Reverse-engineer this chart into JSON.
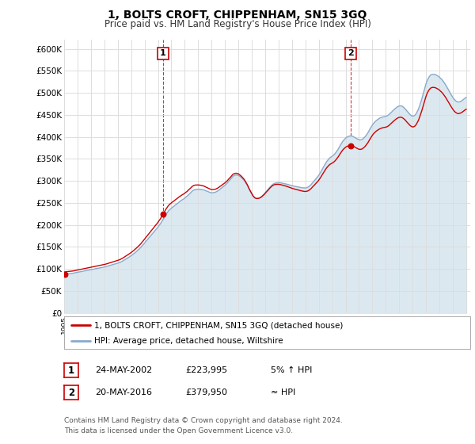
{
  "title": "1, BOLTS CROFT, CHIPPENHAM, SN15 3GQ",
  "subtitle": "Price paid vs. HM Land Registry's House Price Index (HPI)",
  "ylabel_ticks": [
    "£0",
    "£50K",
    "£100K",
    "£150K",
    "£200K",
    "£250K",
    "£300K",
    "£350K",
    "£400K",
    "£450K",
    "£500K",
    "£550K",
    "£600K"
  ],
  "ylim": [
    0,
    620000
  ],
  "yticks": [
    0,
    50000,
    100000,
    150000,
    200000,
    250000,
    300000,
    350000,
    400000,
    450000,
    500000,
    550000,
    600000
  ],
  "background_color": "#ffffff",
  "plot_bg_color": "#ffffff",
  "grid_color": "#dddddd",
  "red_color": "#cc0000",
  "blue_color": "#88aacc",
  "blue_fill": "#dce8f0",
  "legend_entry1": "1, BOLTS CROFT, CHIPPENHAM, SN15 3GQ (detached house)",
  "legend_entry2": "HPI: Average price, detached house, Wiltshire",
  "table_row1": [
    "1",
    "24-MAY-2002",
    "£223,995",
    "5% ↑ HPI"
  ],
  "table_row2": [
    "2",
    "20-MAY-2016",
    "£379,950",
    "≈ HPI"
  ],
  "footer": "Contains HM Land Registry data © Crown copyright and database right 2024.\nThis data is licensed under the Open Government Licence v3.0.",
  "vline1_x": 2002.38,
  "vline2_x": 2016.38,
  "xmin": 1995,
  "xmax": 2025.3,
  "hpi_months": [
    1995.0,
    1995.08,
    1995.17,
    1995.25,
    1995.33,
    1995.42,
    1995.5,
    1995.58,
    1995.67,
    1995.75,
    1995.83,
    1995.92,
    1996.0,
    1996.08,
    1996.17,
    1996.25,
    1996.33,
    1996.42,
    1996.5,
    1996.58,
    1996.67,
    1996.75,
    1996.83,
    1996.92,
    1997.0,
    1997.08,
    1997.17,
    1997.25,
    1997.33,
    1997.42,
    1997.5,
    1997.58,
    1997.67,
    1997.75,
    1997.83,
    1997.92,
    1998.0,
    1998.08,
    1998.17,
    1998.25,
    1998.33,
    1998.42,
    1998.5,
    1998.58,
    1998.67,
    1998.75,
    1998.83,
    1998.92,
    1999.0,
    1999.08,
    1999.17,
    1999.25,
    1999.33,
    1999.42,
    1999.5,
    1999.58,
    1999.67,
    1999.75,
    1999.83,
    1999.92,
    2000.0,
    2000.08,
    2000.17,
    2000.25,
    2000.33,
    2000.42,
    2000.5,
    2000.58,
    2000.67,
    2000.75,
    2000.83,
    2000.92,
    2001.0,
    2001.08,
    2001.17,
    2001.25,
    2001.33,
    2001.42,
    2001.5,
    2001.58,
    2001.67,
    2001.75,
    2001.83,
    2001.92,
    2002.0,
    2002.08,
    2002.17,
    2002.25,
    2002.33,
    2002.42,
    2002.5,
    2002.58,
    2002.67,
    2002.75,
    2002.83,
    2002.92,
    2003.0,
    2003.08,
    2003.17,
    2003.25,
    2003.33,
    2003.42,
    2003.5,
    2003.58,
    2003.67,
    2003.75,
    2003.83,
    2003.92,
    2004.0,
    2004.08,
    2004.17,
    2004.25,
    2004.33,
    2004.42,
    2004.5,
    2004.58,
    2004.67,
    2004.75,
    2004.83,
    2004.92,
    2005.0,
    2005.08,
    2005.17,
    2005.25,
    2005.33,
    2005.42,
    2005.5,
    2005.58,
    2005.67,
    2005.75,
    2005.83,
    2005.92,
    2006.0,
    2006.08,
    2006.17,
    2006.25,
    2006.33,
    2006.42,
    2006.5,
    2006.58,
    2006.67,
    2006.75,
    2006.83,
    2006.92,
    2007.0,
    2007.08,
    2007.17,
    2007.25,
    2007.33,
    2007.42,
    2007.5,
    2007.58,
    2007.67,
    2007.75,
    2007.83,
    2007.92,
    2008.0,
    2008.08,
    2008.17,
    2008.25,
    2008.33,
    2008.42,
    2008.5,
    2008.58,
    2008.67,
    2008.75,
    2008.83,
    2008.92,
    2009.0,
    2009.08,
    2009.17,
    2009.25,
    2009.33,
    2009.42,
    2009.5,
    2009.58,
    2009.67,
    2009.75,
    2009.83,
    2009.92,
    2010.0,
    2010.08,
    2010.17,
    2010.25,
    2010.33,
    2010.42,
    2010.5,
    2010.58,
    2010.67,
    2010.75,
    2010.83,
    2010.92,
    2011.0,
    2011.08,
    2011.17,
    2011.25,
    2011.33,
    2011.42,
    2011.5,
    2011.58,
    2011.67,
    2011.75,
    2011.83,
    2011.92,
    2012.0,
    2012.08,
    2012.17,
    2012.25,
    2012.33,
    2012.42,
    2012.5,
    2012.58,
    2012.67,
    2012.75,
    2012.83,
    2012.92,
    2013.0,
    2013.08,
    2013.17,
    2013.25,
    2013.33,
    2013.42,
    2013.5,
    2013.58,
    2013.67,
    2013.75,
    2013.83,
    2013.92,
    2014.0,
    2014.08,
    2014.17,
    2014.25,
    2014.33,
    2014.42,
    2014.5,
    2014.58,
    2014.67,
    2014.75,
    2014.83,
    2014.92,
    2015.0,
    2015.08,
    2015.17,
    2015.25,
    2015.33,
    2015.42,
    2015.5,
    2015.58,
    2015.67,
    2015.75,
    2015.83,
    2015.92,
    2016.0,
    2016.08,
    2016.17,
    2016.25,
    2016.33,
    2016.42,
    2016.5,
    2016.58,
    2016.67,
    2016.75,
    2016.83,
    2016.92,
    2017.0,
    2017.08,
    2017.17,
    2017.25,
    2017.33,
    2017.42,
    2017.5,
    2017.58,
    2017.67,
    2017.75,
    2017.83,
    2017.92,
    2018.0,
    2018.08,
    2018.17,
    2018.25,
    2018.33,
    2018.42,
    2018.5,
    2018.58,
    2018.67,
    2018.75,
    2018.83,
    2018.92,
    2019.0,
    2019.08,
    2019.17,
    2019.25,
    2019.33,
    2019.42,
    2019.5,
    2019.58,
    2019.67,
    2019.75,
    2019.83,
    2019.92,
    2020.0,
    2020.08,
    2020.17,
    2020.25,
    2020.33,
    2020.42,
    2020.5,
    2020.58,
    2020.67,
    2020.75,
    2020.83,
    2020.92,
    2021.0,
    2021.08,
    2021.17,
    2021.25,
    2021.33,
    2021.42,
    2021.5,
    2021.58,
    2021.67,
    2021.75,
    2021.83,
    2021.92,
    2022.0,
    2022.08,
    2022.17,
    2022.25,
    2022.33,
    2022.42,
    2022.5,
    2022.58,
    2022.67,
    2022.75,
    2022.83,
    2022.92,
    2023.0,
    2023.08,
    2023.17,
    2023.25,
    2023.33,
    2023.42,
    2023.5,
    2023.58,
    2023.67,
    2023.75,
    2023.83,
    2023.92,
    2024.0,
    2024.08,
    2024.17,
    2024.25,
    2024.33,
    2024.42,
    2024.5,
    2024.58,
    2024.67,
    2024.75,
    2024.83,
    2024.92,
    2025.0
  ],
  "hpi_values": [
    88000,
    88500,
    89000,
    89200,
    89500,
    89800,
    90000,
    90200,
    90500,
    91000,
    91500,
    92000,
    92500,
    93000,
    93500,
    94000,
    94500,
    95000,
    95500,
    96000,
    96500,
    97000,
    97500,
    98000,
    98500,
    99000,
    99500,
    100000,
    100500,
    101000,
    101500,
    102000,
    102500,
    103000,
    103500,
    104000,
    104500,
    105000,
    105800,
    106500,
    107200,
    108000,
    108800,
    109500,
    110200,
    111000,
    111800,
    112500,
    113200,
    114000,
    115000,
    116200,
    117500,
    119000,
    120500,
    122000,
    123500,
    125000,
    126800,
    128500,
    130200,
    132000,
    134000,
    136000,
    138000,
    140000,
    142500,
    145000,
    147500,
    150000,
    153000,
    156000,
    159000,
    162000,
    165000,
    168000,
    171000,
    174000,
    177000,
    180000,
    183000,
    186000,
    189000,
    192000,
    195000,
    198500,
    202000,
    206000,
    210000,
    214000,
    218500,
    223000,
    227000,
    230500,
    233500,
    236000,
    238000,
    240000,
    242000,
    244000,
    246000,
    248000,
    250000,
    252000,
    254000,
    256000,
    257500,
    259000,
    261000,
    263000,
    265000,
    267500,
    270000,
    272500,
    275000,
    277500,
    279000,
    280000,
    280500,
    280800,
    281000,
    281000,
    280800,
    280500,
    280000,
    279500,
    278500,
    277500,
    276500,
    275500,
    274500,
    273500,
    273000,
    273000,
    273500,
    274000,
    275000,
    276500,
    278000,
    280000,
    282000,
    284000,
    286000,
    288000,
    290000,
    292500,
    295000,
    298000,
    301000,
    304000,
    307000,
    310000,
    312000,
    313000,
    313500,
    313200,
    312500,
    311000,
    309000,
    307000,
    304500,
    301500,
    298000,
    294000,
    289500,
    284500,
    279500,
    274500,
    270000,
    266000,
    263000,
    261000,
    260000,
    260000,
    260500,
    261500,
    263000,
    265000,
    267500,
    270000,
    273000,
    276000,
    279000,
    282000,
    285000,
    288000,
    290500,
    292500,
    294000,
    295000,
    295500,
    295800,
    296000,
    295800,
    295500,
    295000,
    294500,
    294000,
    293500,
    292800,
    292000,
    291200,
    290500,
    289800,
    289000,
    288500,
    288000,
    287500,
    287000,
    286500,
    286000,
    285500,
    285000,
    284500,
    284200,
    284000,
    284000,
    284500,
    285500,
    287000,
    289000,
    291500,
    294500,
    297500,
    300500,
    303500,
    306500,
    309500,
    313000,
    317000,
    321500,
    326000,
    330500,
    335000,
    339500,
    343500,
    347000,
    350000,
    352500,
    354500,
    356000,
    358000,
    360500,
    363500,
    367000,
    371000,
    375000,
    379500,
    384000,
    388000,
    391500,
    394500,
    397000,
    399000,
    400500,
    401500,
    402000,
    402000,
    401500,
    400500,
    399000,
    397500,
    396000,
    394500,
    393500,
    393000,
    393500,
    394500,
    396500,
    399000,
    402000,
    405500,
    409500,
    414000,
    418500,
    423000,
    427000,
    430500,
    433500,
    436000,
    438000,
    440000,
    441500,
    443000,
    444000,
    445000,
    445500,
    446000,
    446500,
    447500,
    449000,
    451000,
    453500,
    456000,
    458500,
    461000,
    463500,
    465500,
    467500,
    469000,
    470000,
    470500,
    470000,
    469000,
    467000,
    464500,
    461500,
    458500,
    455500,
    452500,
    450000,
    448000,
    447000,
    447500,
    449000,
    452000,
    456500,
    462000,
    468500,
    476000,
    484500,
    493500,
    503000,
    512000,
    520500,
    527500,
    533000,
    537000,
    540000,
    541500,
    542000,
    542000,
    541500,
    540500,
    539000,
    537500,
    535500,
    533000,
    530500,
    527500,
    524000,
    520000,
    516000,
    511500,
    507000,
    502500,
    498000,
    493500,
    489500,
    486000,
    483000,
    481000,
    479500,
    479000,
    479500,
    480500,
    482000,
    484000,
    486000,
    488000,
    489500,
    490500,
    491000,
    491500,
    492000,
    492500,
    493000,
    493500,
    494000,
    494500,
    495000,
    495500,
    496000
  ],
  "sale_points": [
    [
      1995.04,
      88500
    ],
    [
      2002.38,
      223995
    ],
    [
      2016.38,
      379950
    ]
  ]
}
